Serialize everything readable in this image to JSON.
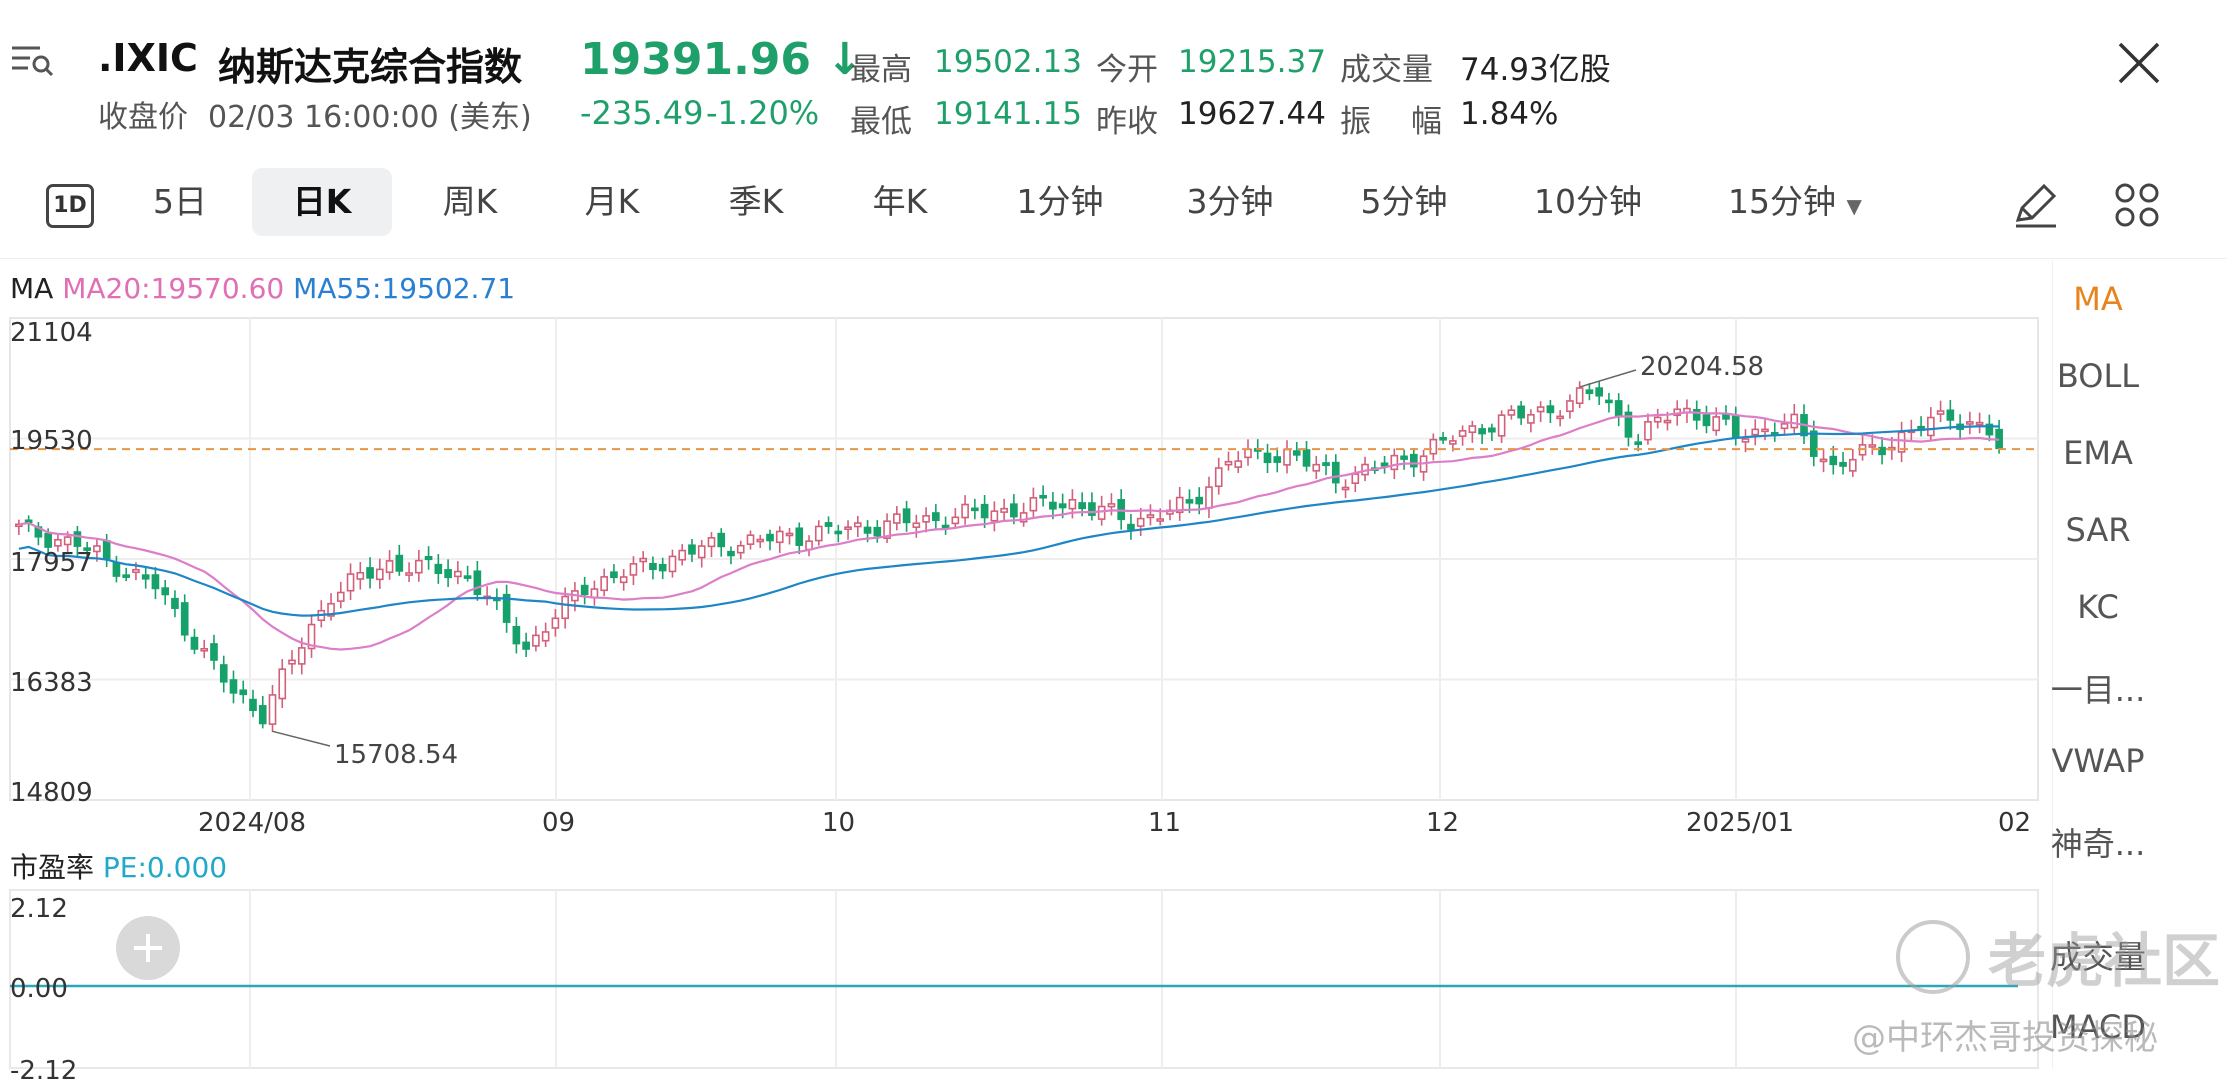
{
  "header": {
    "symbol": ".IXIC",
    "name": "纳斯达克综合指数",
    "price": "19391.96",
    "arrow": "↓",
    "close_label": "收盘价",
    "close_time": "02/03 16:00:00 (美东)",
    "change": "-235.49",
    "change_pct": "-1.20%",
    "stats": {
      "high_label": "最高",
      "high": "19502.13",
      "low_label": "最低",
      "low": "19141.15",
      "open_label": "今开",
      "open": "19215.37",
      "prev_label": "昨收",
      "prev": "19627.44",
      "volume_label": "成交量",
      "volume": "74.93亿股",
      "amp_label1": "振",
      "amp_label2": "幅",
      "amp": "1.84%"
    }
  },
  "tabs": {
    "t_5d": "5日",
    "t_day": "日K",
    "t_week": "周K",
    "t_month": "月K",
    "t_quarter": "季K",
    "t_year": "年K",
    "t_1m": "1分钟",
    "t_3m": "3分钟",
    "t_5m": "5分钟",
    "t_10m": "10分钟",
    "t_15m": "15分钟",
    "badge_1d": "1D"
  },
  "indicator": {
    "ma_label": "MA",
    "ma20": "MA20:19570.60",
    "ma55": "MA55:19502.71"
  },
  "chart_data": {
    "type": "candlestick",
    "yticks": [
      "21104",
      "19530",
      "17957",
      "16383",
      "14809"
    ],
    "ylim": [
      14809,
      21104
    ],
    "xticks": [
      "2024/08",
      "09",
      "10",
      "11",
      "12",
      "2025/01",
      "02"
    ],
    "annotations": {
      "high": "20204.58",
      "low": "15708.54"
    },
    "reference_line": 19391.96,
    "colors": {
      "up": "#d2607a",
      "down": "#16a06a",
      "ma20": "#dc7ec8",
      "ma55": "#1f86c6",
      "ref": "#e8944a"
    }
  },
  "pe": {
    "label": "市盈率",
    "value": "PE:0.000",
    "yticks": [
      "2.12",
      "0.00",
      "-2.12"
    ]
  },
  "sidebar": {
    "items": [
      "MA",
      "BOLL",
      "EMA",
      "SAR",
      "KC",
      "一目...",
      "VWAP",
      "神奇..."
    ],
    "bottom1": "成交量",
    "bottom2": "MACD"
  },
  "watermark": {
    "brand": "老虎社区",
    "author": "@中环杰哥投资探秘"
  },
  "icons": {
    "menu": "menu-search-icon",
    "close": "close-icon",
    "pen": "pen-icon",
    "grid": "grid-icon",
    "add": "add-icon"
  }
}
